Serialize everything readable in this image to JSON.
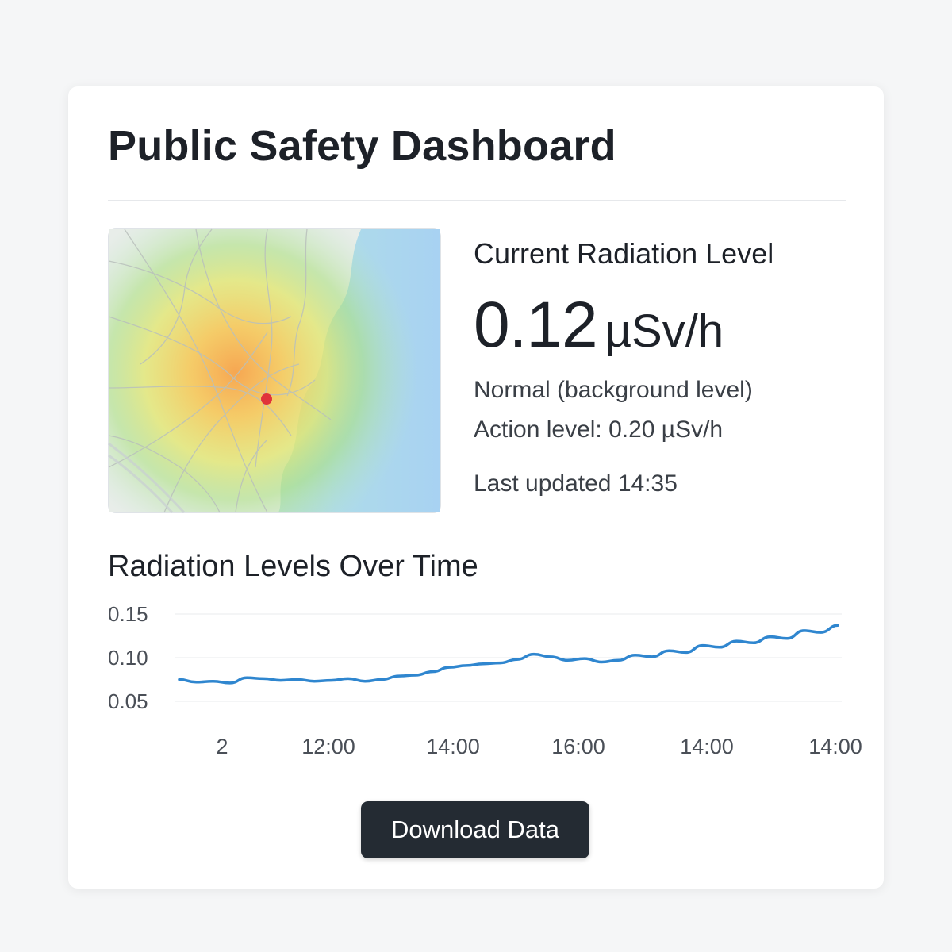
{
  "header": {
    "title": "Public Safety Dashboard"
  },
  "map": {
    "marker_color": "#e0323a",
    "water_color": "#a9d3f0"
  },
  "current": {
    "heading": "Current Radiation Level",
    "value": "0.12",
    "unit": "µSv/h",
    "status": "Normal (background level)",
    "action_level": "Action level: 0.20 µSv/h",
    "last_updated": "Last updated 14:35"
  },
  "chart_title": "Radiation Levels Over Time",
  "chart_data": {
    "type": "line",
    "x_tick_labels": [
      "2",
      "12:00",
      "14:00",
      "16:00",
      "14:00",
      "14:00"
    ],
    "y_tick_labels": [
      "0.15",
      "0.10",
      "0.05"
    ],
    "ylim": [
      0.05,
      0.15
    ],
    "grid": true,
    "color": "#2f86cf",
    "series": [
      {
        "values": [
          0.075,
          0.072,
          0.073,
          0.071,
          0.077,
          0.076,
          0.074,
          0.075,
          0.073,
          0.074,
          0.076,
          0.073,
          0.075,
          0.079,
          0.08,
          0.084,
          0.089,
          0.091,
          0.093,
          0.094,
          0.098,
          0.104,
          0.101,
          0.097,
          0.099,
          0.095,
          0.097,
          0.103,
          0.101,
          0.108,
          0.106,
          0.114,
          0.112,
          0.119,
          0.117,
          0.124,
          0.122,
          0.131,
          0.129,
          0.137
        ]
      }
    ]
  },
  "actions": {
    "download_label": "Download Data"
  }
}
